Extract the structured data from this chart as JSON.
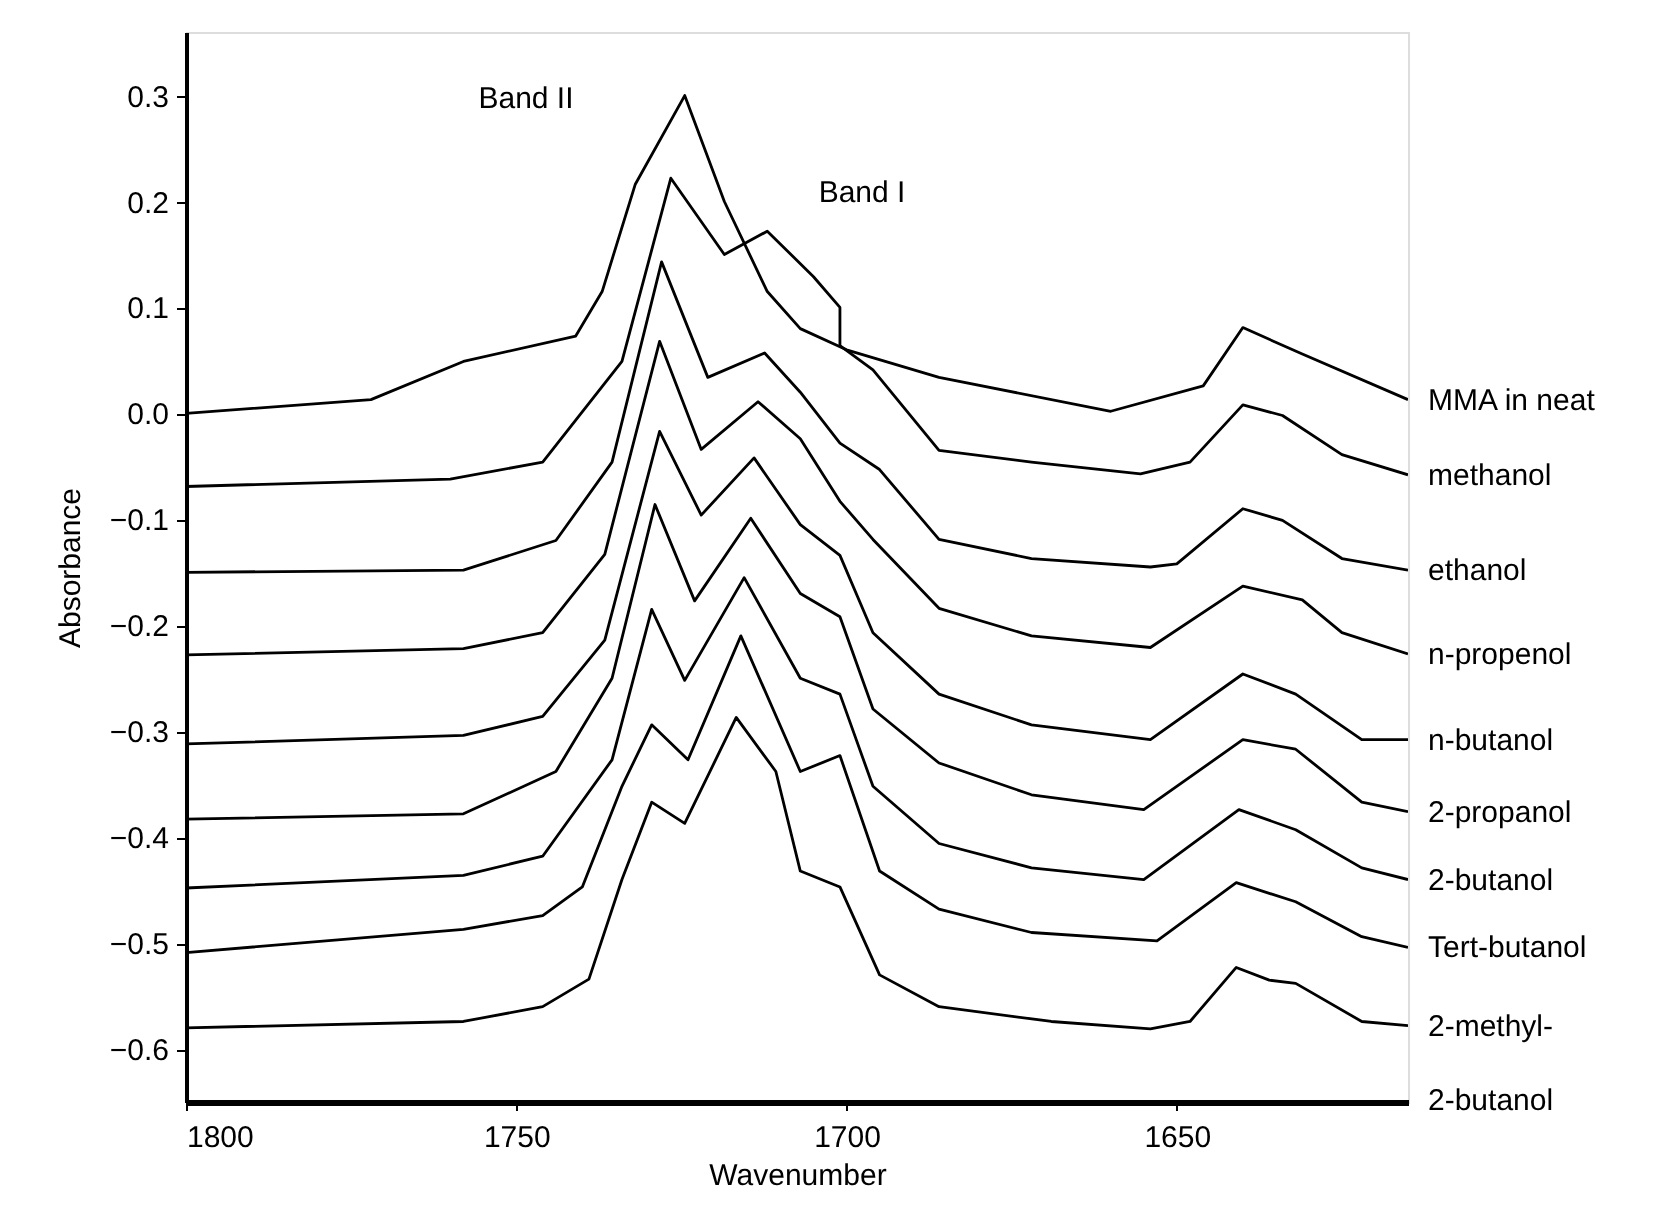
{
  "chart_data": {
    "type": "line",
    "xlabel": "Wavenumber",
    "ylabel": "Absorbance",
    "xlim": [
      1800,
      1615
    ],
    "xticks": [
      1800,
      1750,
      1700,
      1650
    ],
    "ylim": [
      -0.65,
      0.36
    ],
    "yticks": [
      -0.6,
      -0.5,
      -0.4,
      -0.3,
      -0.2,
      -0.1,
      {
        "value": 0,
        "label": "0.0"
      },
      0.1,
      0.2,
      0.3
    ],
    "grid": false,
    "marker": "none",
    "line_style": "solid",
    "annotations": [
      "Band II",
      "Band I"
    ],
    "series": [
      {
        "name": "MMA in neat",
        "color": "#000000",
        "x": [
          1800,
          1772,
          1758,
          1741,
          1737,
          1732,
          1724.5,
          1718.5,
          1712,
          1707,
          1700,
          1686,
          1660,
          1646,
          1640,
          1631,
          1615
        ],
        "values": [
          0.0,
          0.013,
          0.049,
          0.073,
          0.115,
          0.216,
          0.3,
          0.2,
          0.115,
          0.08,
          0.06,
          0.034,
          0.002,
          0.026,
          0.081,
          0.056,
          0.013
        ]
      },
      {
        "name": "methanol",
        "color": "#000000",
        "x": [
          1800,
          1760,
          1746,
          1734,
          1726.6,
          1718.5,
          1712,
          1705,
          1701,
          1701,
          1696,
          1686,
          1672,
          1655.5,
          1648,
          1640,
          1634,
          1625,
          1615
        ],
        "values": [
          -0.069,
          -0.062,
          -0.046,
          0.049,
          0.222,
          0.15,
          0.172,
          0.129,
          0.1,
          0.064,
          0.041,
          -0.035,
          -0.046,
          -0.057,
          -0.046,
          0.008,
          -0.002,
          -0.039,
          -0.058
        ]
      },
      {
        "name": "ethanol",
        "color": "#000000",
        "x": [
          1800,
          1758,
          1744,
          1735.5,
          1728,
          1721,
          1712.4,
          1707,
          1701,
          1695,
          1686,
          1672,
          1654,
          1650,
          1640,
          1634,
          1625,
          1615
        ],
        "values": [
          -0.15,
          -0.148,
          -0.12,
          -0.046,
          0.143,
          0.034,
          0.057,
          0.02,
          -0.028,
          -0.053,
          -0.119,
          -0.137,
          -0.145,
          -0.142,
          -0.09,
          -0.101,
          -0.137,
          -0.148
        ]
      },
      {
        "name": "n-propenol",
        "color": "#000000",
        "x": [
          1800,
          1758,
          1746,
          1736.6,
          1728.3,
          1722,
          1713.4,
          1707,
          1701,
          1696,
          1686,
          1672,
          1654,
          1640,
          1631,
          1625,
          1615
        ],
        "values": [
          -0.228,
          -0.222,
          -0.207,
          -0.133,
          0.068,
          -0.034,
          0.011,
          -0.024,
          -0.083,
          -0.119,
          -0.184,
          -0.21,
          -0.221,
          -0.163,
          -0.176,
          -0.207,
          -0.227
        ]
      },
      {
        "name": "n-butanol",
        "color": "#000000",
        "x": [
          1800,
          1758,
          1746,
          1736.6,
          1728.3,
          1722,
          1714,
          1707,
          1701,
          1696,
          1686,
          1672,
          1654,
          1640,
          1632,
          1622,
          1615
        ],
        "values": [
          -0.312,
          -0.304,
          -0.286,
          -0.214,
          -0.017,
          -0.096,
          -0.042,
          -0.105,
          -0.134,
          -0.207,
          -0.265,
          -0.294,
          -0.308,
          -0.246,
          -0.265,
          -0.308,
          -0.308
        ]
      },
      {
        "name": "2-propanol",
        "color": "#000000",
        "x": [
          1800,
          1758,
          1744,
          1735.5,
          1729,
          1723,
          1714.5,
          1707,
          1701,
          1696,
          1686,
          1672,
          1655,
          1640,
          1632,
          1622,
          1615
        ],
        "values": [
          -0.383,
          -0.378,
          -0.338,
          -0.25,
          -0.086,
          -0.177,
          -0.099,
          -0.17,
          -0.192,
          -0.279,
          -0.33,
          -0.36,
          -0.374,
          -0.308,
          -0.317,
          -0.367,
          -0.376
        ]
      },
      {
        "name": "2-butanol",
        "color": "#000000",
        "x": [
          1800,
          1758,
          1746,
          1735.5,
          1729.5,
          1724.5,
          1715.5,
          1707,
          1701,
          1696,
          1686,
          1672,
          1655,
          1640.6,
          1632,
          1622,
          1615
        ],
        "values": [
          -0.448,
          -0.436,
          -0.418,
          -0.327,
          -0.185,
          -0.252,
          -0.155,
          -0.25,
          -0.265,
          -0.352,
          -0.406,
          -0.429,
          -0.44,
          -0.374,
          -0.393,
          -0.429,
          -0.44
        ]
      },
      {
        "name": "Tert-butanol",
        "color": "#000000",
        "x": [
          1800,
          1758,
          1746,
          1740,
          1734,
          1729.5,
          1724,
          1716,
          1707,
          1701,
          1695,
          1686,
          1672,
          1653,
          1641,
          1632,
          1622,
          1615
        ],
        "values": [
          -0.509,
          -0.487,
          -0.474,
          -0.447,
          -0.352,
          -0.294,
          -0.327,
          -0.21,
          -0.338,
          -0.323,
          -0.432,
          -0.468,
          -0.49,
          -0.498,
          -0.443,
          -0.461,
          -0.494,
          -0.504
        ]
      },
      {
        "name": "2-methyl-\n2-butanol",
        "color": "#000000",
        "x": [
          1800,
          1758,
          1746,
          1739,
          1734,
          1729.5,
          1724.5,
          1716.7,
          1710.7,
          1707,
          1701,
          1695,
          1686,
          1669,
          1654,
          1648,
          1641,
          1636,
          1632,
          1622,
          1615
        ],
        "values": [
          -0.58,
          -0.574,
          -0.56,
          -0.534,
          -0.44,
          -0.367,
          -0.387,
          -0.287,
          -0.338,
          -0.432,
          -0.447,
          -0.53,
          -0.56,
          -0.574,
          -0.581,
          -0.574,
          -0.523,
          -0.535,
          -0.538,
          -0.574,
          -0.578
        ]
      }
    ]
  }
}
